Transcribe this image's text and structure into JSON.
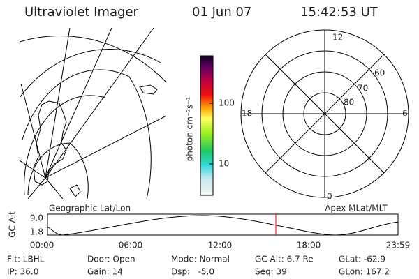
{
  "header": {
    "title": "Ultraviolet Imager",
    "date": "01 Jun 07",
    "time": "15:42:53 UT"
  },
  "colorbar": {
    "label": "photon cm⁻²s⁻¹",
    "ticks": [
      "100",
      "10"
    ]
  },
  "polar": {
    "mlt_labels": [
      "12",
      "18",
      "6",
      "0"
    ],
    "lat_labels": [
      "80",
      "70",
      "60"
    ]
  },
  "timeline": {
    "left_label": "Geographic Lat/Lon",
    "right_label": "Apex MLat/MLT",
    "y_label": "GC Alt",
    "y_ticks": [
      "9.0",
      "1.8"
    ],
    "x_ticks": [
      "00:00",
      "06:00",
      "12:00",
      "18:00",
      "23:59"
    ]
  },
  "status": {
    "rows": [
      [
        "Flt: LBHL",
        "Door: Open",
        "Mode: Normal",
        "GC Alt: 6.7 Re",
        "GLat: -62.9"
      ],
      [
        "IP: 36.0",
        "Gain: 14",
        "Dsp:   -5.0",
        "Seq: 39",
        "GLon: 167.2"
      ]
    ]
  }
}
